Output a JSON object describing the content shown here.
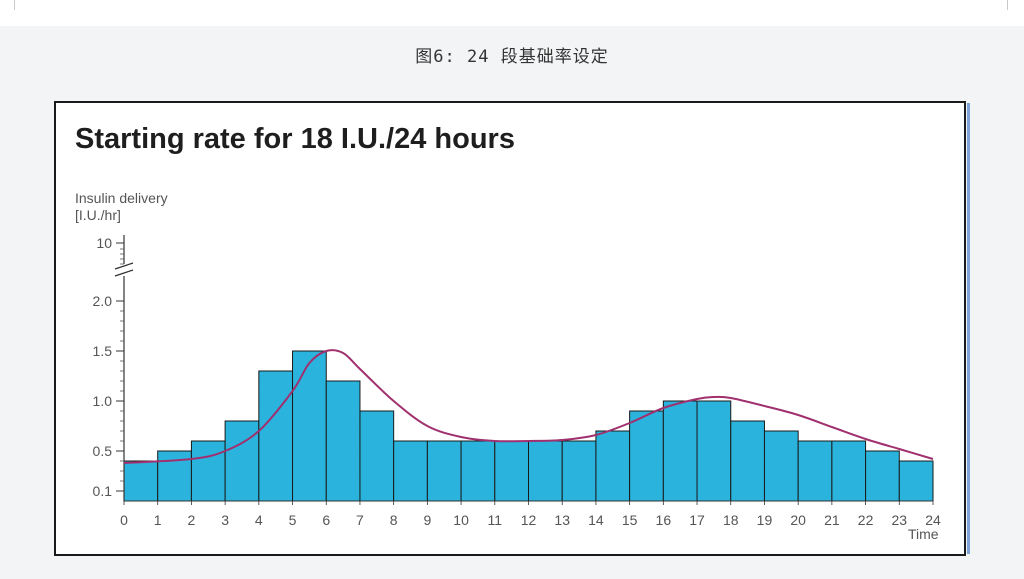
{
  "caption": "图6: 24 段基础率设定",
  "chart_data": {
    "type": "bar",
    "title": "Starting rate for 18 I.U./24 hours",
    "ylabel_line1": "Insulin delivery",
    "ylabel_line2": "[I.U./hr]",
    "xlabel": "Time",
    "x_ticks": [
      "0",
      "1",
      "2",
      "3",
      "4",
      "5",
      "6",
      "7",
      "8",
      "9",
      "10",
      "11",
      "12",
      "13",
      "14",
      "15",
      "16",
      "17",
      "18",
      "19",
      "20",
      "21",
      "22",
      "23",
      "24"
    ],
    "y_ticks": [
      "0.1",
      "0.5",
      "1.0",
      "1.5",
      "2.0",
      "10"
    ],
    "y_axis_break": true,
    "hours": [
      0,
      1,
      2,
      3,
      4,
      5,
      6,
      7,
      8,
      9,
      10,
      11,
      12,
      13,
      14,
      15,
      16,
      17,
      18,
      19,
      20,
      21,
      22,
      23
    ],
    "values": [
      0.4,
      0.5,
      0.6,
      0.8,
      1.3,
      1.5,
      1.2,
      0.9,
      0.6,
      0.6,
      0.6,
      0.6,
      0.6,
      0.6,
      0.7,
      0.9,
      1.0,
      1.0,
      0.8,
      0.7,
      0.6,
      0.6,
      0.5,
      0.4
    ],
    "curve": {
      "x": [
        0,
        2,
        3,
        4,
        5,
        5.5,
        6,
        6.5,
        7,
        8,
        9,
        10,
        11,
        12,
        13,
        14,
        15,
        16,
        17,
        17.5,
        18,
        19,
        20,
        21,
        22,
        23,
        24
      ],
      "y": [
        0.38,
        0.42,
        0.5,
        0.7,
        1.1,
        1.38,
        1.5,
        1.48,
        1.32,
        1.0,
        0.75,
        0.64,
        0.6,
        0.6,
        0.61,
        0.66,
        0.78,
        0.93,
        1.02,
        1.04,
        1.03,
        0.95,
        0.86,
        0.74,
        0.62,
        0.52,
        0.42
      ]
    },
    "bar_color": "#2ab4dd",
    "curve_color": "#a0306e"
  }
}
